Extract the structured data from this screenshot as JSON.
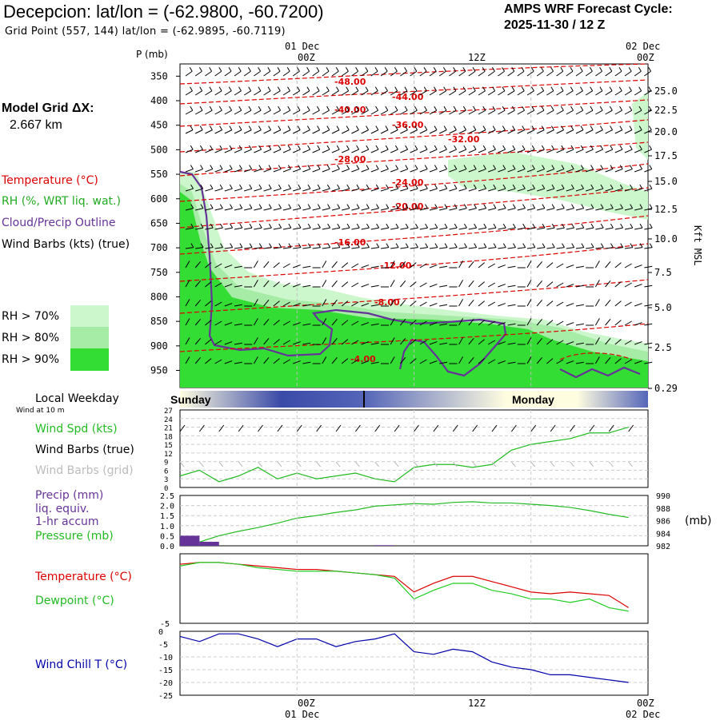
{
  "header": {
    "title": "Decepcion:  lat/lon = (-62.9800, -60.7200)",
    "grid_point": "Grid Point (557, 144) lat/lon = (-62.9895, -60.7119)",
    "cycle_line1": "AMPS WRF Forecast Cycle:",
    "cycle_line2": "2025-11-30 / 12  Z"
  },
  "model_grid": {
    "label": "Model Grid ΔX:",
    "value": "2.667 km"
  },
  "legend": {
    "temperature": "Temperature (°C)",
    "rh": "RH (%, WRT liq. wat.)",
    "cloud": "Cloud/Precip Outline",
    "wind": "Wind Barbs (kts) (true)",
    "rh70": "RH > 70%",
    "rh80": "RH > 80%",
    "rh90": "RH > 90%",
    "rh_colors": [
      "#ccf7cc",
      "#a6eba6",
      "#33dd33"
    ]
  },
  "top_axis": {
    "p_label": "P (mb)",
    "date_left": "01 Dec",
    "date_right": "02 Dec",
    "times": [
      "00Z",
      "12Z",
      "00Z"
    ]
  },
  "bottom_axis": {
    "times": [
      "00Z",
      "12Z",
      "00Z"
    ],
    "dates": [
      "01 Dec",
      "02 Dec"
    ]
  },
  "weekday": {
    "label": "Local Weekday",
    "wind_note": "Wind at 10 m",
    "days": [
      "Sunday",
      "Monday"
    ]
  },
  "panel_labels": {
    "wind_spd": "Wind Spd (kts)",
    "barbs_true": "Wind Barbs (true)",
    "barbs_grid": "Wind Barbs (grid)",
    "precip": "Precip (mm)",
    "liq": "liq. equiv.",
    "accum": "1-hr accum",
    "pressure": "Pressure (mb)",
    "pressure_unit": "(mb)",
    "temp": "Temperature (°C)",
    "dew": "Dewpoint (°C)",
    "windchill": "Wind Chill T (°C)",
    "kft": "Kft MSL"
  },
  "colors": {
    "temperature": "#dd0000",
    "dewpoint": "#22cc22",
    "cloud": "#663399",
    "windchill": "#0000aa",
    "precip": "#663399"
  },
  "chart_data": [
    {
      "type": "heatmap",
      "title": "",
      "ylabel": "P (mb)",
      "y_ticks": [
        350,
        400,
        450,
        500,
        550,
        600,
        650,
        700,
        750,
        800,
        850,
        900,
        950
      ],
      "y2_ticks": [
        "25.0",
        "22.5",
        "20.0",
        "17.5",
        "15.0",
        "12.5",
        "10.0",
        "7.5",
        "5.0",
        "2.5",
        "0.29"
      ],
      "y2label": "Kft MSL",
      "x_ticks": [
        "00Z",
        "12Z",
        "00Z"
      ],
      "temperature_contour_labels": [
        "-48.00",
        "-44.00",
        "-40.00",
        "-36.00",
        "-32.00",
        "-28.00",
        "-24.00",
        "-20.00",
        "-16.00",
        "-12.00",
        "-8.00",
        "-4.00"
      ]
    },
    {
      "type": "line",
      "title": "",
      "ylabel": "Wind Spd (kts)",
      "ylim": [
        0,
        27
      ],
      "y_ticks": [
        0,
        3,
        6,
        9,
        12,
        15,
        18,
        21,
        24,
        27
      ],
      "x_hours": [
        0,
        2,
        4,
        6,
        8,
        10,
        12,
        14,
        16,
        18,
        20,
        22,
        24,
        26,
        28,
        30,
        32,
        34,
        36,
        38,
        40,
        42,
        44,
        46
      ],
      "series": [
        {
          "name": "Wind Spd (kts)",
          "values": [
            4,
            6,
            2,
            4,
            7,
            3,
            5,
            3,
            4,
            5,
            3,
            2,
            7,
            8,
            8,
            7,
            8,
            13,
            15,
            16,
            17,
            19,
            19,
            21
          ]
        }
      ]
    },
    {
      "type": "line",
      "title": "",
      "ylabel": "Precip (mm)",
      "y_ticks": [
        "0.0",
        "0.5",
        "1.0",
        "1.5",
        "2.0",
        "2.5"
      ],
      "y2_ticks": [
        982,
        984,
        986,
        988,
        990
      ],
      "y2label": "(mb)",
      "ylim": [
        0,
        2.5
      ],
      "y2lim": [
        982,
        990
      ],
      "x_hours": [
        0,
        2,
        4,
        6,
        8,
        10,
        12,
        14,
        16,
        18,
        20,
        22,
        24,
        26,
        28,
        30,
        32,
        34,
        36,
        38,
        40,
        42,
        44,
        46
      ],
      "series": [
        {
          "name": "Pressure (mb)",
          "axis": "right",
          "values": [
            982.5,
            982.6,
            983.6,
            984.3,
            984.9,
            985.6,
            986.4,
            986.8,
            987.3,
            987.7,
            988.3,
            988.5,
            988.7,
            988.6,
            988.9,
            989.0,
            988.8,
            988.8,
            988.6,
            988.4,
            988.1,
            987.6,
            987.0,
            986.5
          ]
        },
        {
          "name": "Precip (mm)",
          "type": "bar",
          "values": [
            0.5,
            0.2,
            0.0,
            0.0,
            0.0,
            0.0,
            0.0,
            0.0,
            0.0,
            0.0,
            0.03,
            0.0,
            0.0,
            0.0,
            0.0,
            0.0,
            0.0,
            0.0,
            0.0,
            0.0,
            0.0,
            0.0,
            0.0,
            0.0
          ]
        }
      ]
    },
    {
      "type": "line",
      "title": "",
      "ylabel": "Temperature (°C)",
      "ylim": [
        -5,
        1
      ],
      "y_ticks": [
        -5
      ],
      "x_hours": [
        0,
        2,
        4,
        6,
        8,
        10,
        12,
        14,
        16,
        18,
        20,
        22,
        24,
        26,
        28,
        30,
        32,
        34,
        36,
        38,
        40,
        42,
        44,
        46
      ],
      "series": [
        {
          "name": "Temperature (°C)",
          "values": [
            0.6,
            0.7,
            0.7,
            0.6,
            0.5,
            0.4,
            0.3,
            0.3,
            0.2,
            0.1,
            0.0,
            -0.1,
            -1.0,
            -0.5,
            -0.1,
            -0.1,
            -0.4,
            -0.7,
            -1.0,
            -1.1,
            -1.0,
            -1.1,
            -1.2,
            -1.9
          ]
        },
        {
          "name": "Dewpoint (°C)",
          "values": [
            0.5,
            0.7,
            0.7,
            0.6,
            0.4,
            0.3,
            0.2,
            0.2,
            0.2,
            0.1,
            0.0,
            -0.2,
            -1.4,
            -0.9,
            -0.5,
            -0.5,
            -0.9,
            -1.1,
            -1.4,
            -1.4,
            -1.6,
            -1.4,
            -1.9,
            -2.1
          ]
        }
      ]
    },
    {
      "type": "line",
      "title": "",
      "ylabel": "Wind Chill T (°C)",
      "ylim": [
        -25,
        0
      ],
      "y_ticks": [
        0,
        -5,
        -10,
        -15,
        -20,
        -25
      ],
      "x_hours": [
        0,
        2,
        4,
        6,
        8,
        10,
        12,
        14,
        16,
        18,
        20,
        22,
        24,
        26,
        28,
        30,
        32,
        34,
        36,
        38,
        40,
        42,
        44,
        46
      ],
      "series": [
        {
          "name": "Wind Chill T (°C)",
          "values": [
            -2,
            -4,
            -1,
            -1,
            -3,
            -6,
            -3,
            -3,
            -6,
            -4,
            -3,
            -1,
            -8,
            -9,
            -7,
            -8,
            -12,
            -14,
            -15,
            -17,
            -17,
            -18,
            -19,
            -20
          ]
        }
      ]
    }
  ]
}
